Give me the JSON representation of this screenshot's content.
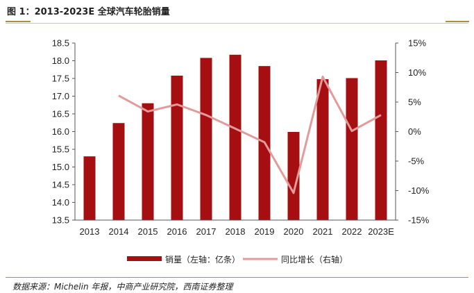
{
  "header": {
    "title": "图 1：2013-2023E 全球汽车轮胎销量"
  },
  "footer": {
    "source": "数据来源：Michelin 年报，中商产业研究院，西南证券整理"
  },
  "colors": {
    "bar": "#a50f12",
    "line": "#e39a9a",
    "rule": "#b48a3c"
  },
  "chart_data": {
    "type": "bar",
    "title": "2013-2023E 全球汽车轮胎销量",
    "categories": [
      "2013",
      "2014",
      "2015",
      "2016",
      "2017",
      "2018",
      "2019",
      "2020",
      "2021",
      "2022",
      "2023E"
    ],
    "series": [
      {
        "name": "销量（左轴：亿条）",
        "type": "bar",
        "axis": "left",
        "values": [
          15.3,
          16.24,
          16.8,
          17.58,
          18.08,
          18.17,
          17.85,
          15.99,
          17.48,
          17.51,
          18.01
        ]
      },
      {
        "name": "同比增长（右轴）",
        "type": "line",
        "axis": "right",
        "values": [
          null,
          6.1,
          3.4,
          4.6,
          2.8,
          0.5,
          -1.8,
          -10.4,
          9.3,
          0.1,
          2.8
        ]
      }
    ],
    "y_left": {
      "min": 13.5,
      "max": 18.5,
      "ticks": [
        "13.5",
        "14.0",
        "14.5",
        "15.0",
        "15.5",
        "16.0",
        "16.5",
        "17.0",
        "17.5",
        "18.0",
        "18.5"
      ]
    },
    "y_right": {
      "min": -15,
      "max": 15,
      "ticks": [
        "-15%",
        "-10%",
        "-5%",
        "0%",
        "5%",
        "10%",
        "15%"
      ]
    },
    "legend_position": "bottom"
  }
}
